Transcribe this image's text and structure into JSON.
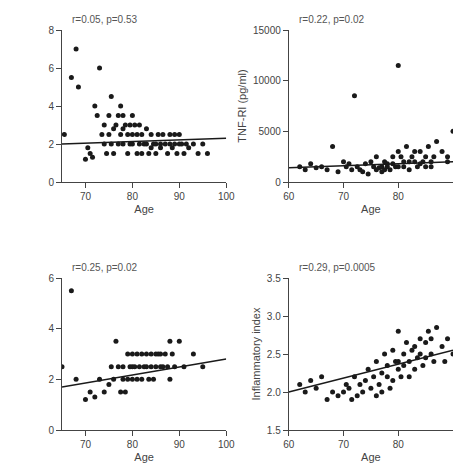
{
  "chart_data": [
    {
      "type": "scatter",
      "xlabel": "Age",
      "annotation": {
        "text": "r=0.05, p=0.53",
        "color": "#555555"
      },
      "xlim": [
        65,
        100
      ],
      "ylim": [
        0,
        8
      ],
      "xticks": [
        70,
        80,
        90,
        100
      ],
      "yticks": [
        0,
        2,
        4,
        6,
        8
      ],
      "grid": false,
      "series": [
        {
          "type": "scatter",
          "marker": "circle",
          "color": "#1a1a1a",
          "x": [
            65.5,
            67,
            68,
            68.5,
            70,
            70.5,
            71,
            71.5,
            72,
            72.5,
            73,
            73.5,
            74,
            74,
            74.5,
            75,
            75,
            75.5,
            75.5,
            76,
            76,
            76.5,
            77,
            77,
            77.5,
            77.5,
            78,
            78,
            78,
            78.5,
            79,
            79,
            79.5,
            79.5,
            80,
            80,
            80,
            80.5,
            81,
            81,
            81.5,
            81.5,
            82,
            82,
            82.5,
            83,
            83,
            83.5,
            84,
            84,
            84.5,
            85,
            85,
            85.5,
            86,
            86,
            86.5,
            87,
            87.5,
            88,
            88,
            88.5,
            89,
            89,
            89.5,
            90,
            90,
            90.5,
            91,
            91.5,
            92,
            93,
            94,
            95,
            96
          ],
          "values": [
            2.5,
            5.5,
            7.0,
            5.0,
            1.2,
            1.8,
            1.5,
            1.3,
            4.0,
            3.5,
            6.0,
            2.5,
            2.0,
            3.0,
            1.5,
            2.5,
            3.5,
            4.5,
            2.0,
            2.8,
            1.5,
            3.0,
            3.5,
            2.0,
            2.5,
            4.0,
            2.8,
            3.5,
            2.0,
            3.0,
            2.5,
            1.5,
            3.0,
            2.0,
            3.5,
            2.5,
            2.0,
            3.0,
            1.5,
            2.5,
            2.0,
            3.0,
            2.5,
            1.5,
            2.0,
            2.8,
            2.0,
            1.5,
            2.5,
            1.8,
            2.0,
            2.0,
            1.5,
            2.5,
            1.8,
            2.0,
            2.5,
            2.0,
            1.5,
            2.0,
            2.5,
            1.8,
            2.0,
            2.5,
            1.5,
            2.0,
            2.5,
            2.0,
            1.5,
            2.0,
            1.8,
            2.0,
            1.5,
            2.0,
            1.5
          ]
        },
        {
          "type": "line",
          "line_style": "solid",
          "color": "#1a1a1a",
          "x": [
            65,
            100
          ],
          "values": [
            2.0,
            2.3
          ]
        }
      ]
    },
    {
      "type": "scatter",
      "xlabel": "Age",
      "ylabel": "TNF-RI (pg/ml)",
      "annotation": {
        "text": "r=0.22, p=0.02",
        "color": "#555555"
      },
      "xlim": [
        60,
        90
      ],
      "ylim": [
        0,
        15000
      ],
      "xticks": [
        60,
        70,
        80
      ],
      "yticks": [
        0,
        5000,
        10000,
        15000
      ],
      "grid": false,
      "series": [
        {
          "type": "scatter",
          "marker": "circle",
          "color": "#1a1a1a",
          "x": [
            62,
            63,
            64,
            65,
            66,
            67,
            68,
            69,
            70,
            70.5,
            71,
            71.5,
            72,
            72.5,
            73,
            73.5,
            74,
            74.5,
            75,
            75.5,
            76,
            76,
            76.5,
            77,
            77,
            77.5,
            77.5,
            78,
            78,
            78.5,
            79,
            79,
            79.5,
            80,
            80,
            80,
            80.5,
            81,
            81,
            81.5,
            82,
            82,
            82.5,
            83,
            83,
            83.5,
            84,
            84,
            84.5,
            85,
            85,
            85.5,
            86,
            86,
            86.5,
            87,
            88,
            89,
            89,
            90
          ],
          "values": [
            1500,
            1200,
            1800,
            1400,
            1500,
            1200,
            3500,
            1000,
            2000,
            1500,
            1800,
            1200,
            8500,
            1500,
            1200,
            1000,
            1800,
            800,
            2000,
            1500,
            1200,
            2500,
            1400,
            1500,
            1000,
            2000,
            1200,
            1800,
            1500,
            1200,
            2500,
            1800,
            1500,
            11500,
            3000,
            1500,
            2500,
            2000,
            1500,
            3500,
            2000,
            1200,
            2500,
            3000,
            2000,
            1500,
            3000,
            1800,
            2000,
            2500,
            1500,
            3500,
            2000,
            1500,
            2500,
            4000,
            3000,
            2500,
            2000,
            5000
          ]
        },
        {
          "type": "line",
          "line_style": "solid",
          "color": "#1a1a1a",
          "x": [
            60,
            90
          ],
          "values": [
            1400,
            2000
          ]
        }
      ]
    },
    {
      "type": "scatter",
      "xlabel": "Age",
      "annotation": {
        "text": "r=0.25, p=0.02",
        "color": "#555555"
      },
      "xlim": [
        65,
        100
      ],
      "ylim": [
        0,
        6
      ],
      "xticks": [
        70,
        80,
        90,
        100
      ],
      "yticks": [
        0,
        2,
        4,
        6
      ],
      "grid": false,
      "series": [
        {
          "type": "scatter",
          "marker": "circle",
          "color": "#1a1a1a",
          "x": [
            65,
            67,
            68,
            70,
            71,
            72,
            73,
            74,
            75,
            75.5,
            76,
            76.5,
            77,
            77.5,
            78,
            78,
            78.5,
            79,
            79,
            79.5,
            80,
            80,
            80,
            80.5,
            81,
            81,
            81.5,
            82,
            82,
            82.5,
            83,
            83,
            83.5,
            84,
            84,
            84.5,
            85,
            85,
            85.5,
            86,
            86,
            86.5,
            87,
            87.5,
            88,
            88,
            88.5,
            89,
            90,
            91,
            93,
            95
          ],
          "values": [
            2.5,
            5.5,
            2.0,
            1.2,
            1.5,
            1.3,
            2.0,
            1.5,
            1.8,
            2.5,
            2.0,
            3.5,
            2.5,
            1.5,
            2.5,
            2.0,
            1.5,
            3.0,
            2.0,
            2.5,
            3.0,
            2.5,
            2.0,
            2.5,
            3.0,
            2.0,
            2.5,
            3.0,
            2.0,
            2.5,
            2.5,
            3.0,
            2.0,
            3.0,
            2.5,
            2.0,
            3.0,
            2.5,
            3.0,
            2.5,
            3.0,
            2.5,
            3.0,
            2.5,
            3.5,
            2.0,
            3.0,
            2.5,
            3.5,
            2.5,
            3.0,
            2.5
          ]
        },
        {
          "type": "line",
          "line_style": "solid",
          "color": "#1a1a1a",
          "x": [
            65,
            100
          ],
          "values": [
            1.7,
            2.8
          ]
        }
      ]
    },
    {
      "type": "scatter",
      "xlabel": "Age",
      "ylabel": "Inflammatory index",
      "annotation": {
        "text": "r=0.29, p=0.0005",
        "color": "#555555"
      },
      "xlim": [
        60,
        90
      ],
      "ylim": [
        1.5,
        3.5
      ],
      "xticks": [
        60,
        70,
        80
      ],
      "yticks": [
        1.5,
        {
          "value": 2.0,
          "label": "2.0"
        },
        2.5,
        {
          "value": 3.0,
          "label": "3.0"
        },
        3.5
      ],
      "grid": false,
      "series": [
        {
          "type": "scatter",
          "marker": "circle",
          "color": "#1a1a1a",
          "x": [
            62,
            63,
            64,
            65,
            66,
            67,
            68,
            69,
            70,
            70.5,
            71,
            71.5,
            72,
            72.5,
            73,
            73.5,
            74,
            74.5,
            75,
            75.5,
            76,
            76,
            76.5,
            77,
            77,
            77.5,
            78,
            78,
            78.5,
            79,
            79,
            79.5,
            80,
            80,
            80,
            80.5,
            81,
            81,
            81.5,
            82,
            82,
            82.5,
            83,
            83,
            83.5,
            84,
            84,
            84.5,
            85,
            85,
            85.5,
            86,
            86,
            86.5,
            87,
            88,
            88.5,
            89,
            90
          ],
          "values": [
            2.1,
            2.0,
            2.15,
            2.05,
            2.2,
            1.9,
            2.0,
            1.95,
            2.0,
            2.1,
            2.05,
            1.9,
            2.2,
            1.95,
            2.1,
            2.0,
            2.15,
            2.3,
            2.05,
            2.2,
            1.95,
            2.4,
            2.1,
            2.25,
            2.0,
            2.5,
            2.2,
            2.35,
            2.05,
            2.55,
            2.15,
            2.4,
            2.3,
            2.8,
            2.4,
            2.2,
            2.5,
            2.35,
            2.65,
            2.4,
            2.2,
            2.55,
            2.6,
            2.3,
            2.45,
            2.7,
            2.5,
            2.35,
            2.65,
            2.45,
            2.8,
            2.5,
            2.7,
            2.4,
            2.85,
            2.6,
            2.4,
            2.7,
            2.5
          ]
        },
        {
          "type": "line",
          "line_style": "solid",
          "color": "#1a1a1a",
          "x": [
            60,
            90
          ],
          "values": [
            2.0,
            2.55
          ]
        }
      ]
    }
  ]
}
